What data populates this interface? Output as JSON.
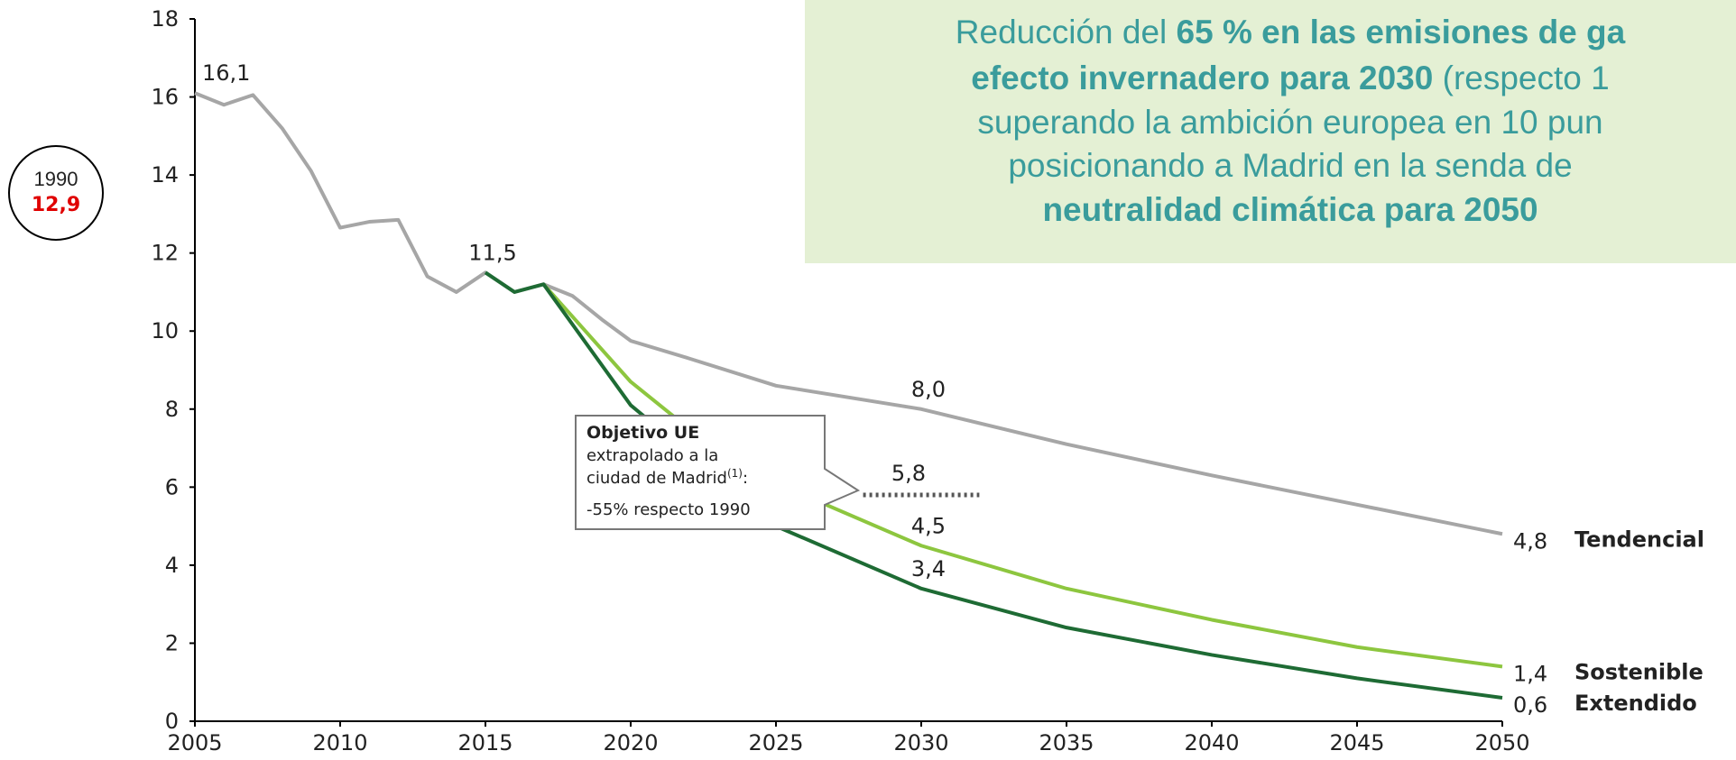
{
  "headline": {
    "line1_a": "Reducción del ",
    "line1_b": "65 % en las emisiones de ga",
    "line2_a": "efecto invernadero para 2030",
    "line2_b": " (respecto 1",
    "line3": "superando la ambición europea en 10 pun",
    "line4": "posicionando a Madrid en la senda de",
    "line5": "neutralidad climática para 2050"
  },
  "chart_data": {
    "type": "line",
    "xlim": [
      2005,
      2050
    ],
    "xticks": [
      2005,
      2010,
      2015,
      2020,
      2025,
      2030,
      2035,
      2040,
      2045,
      2050
    ],
    "ylim": [
      0,
      18
    ],
    "yticks": [
      0,
      2,
      4,
      6,
      8,
      10,
      12,
      14,
      16,
      18
    ],
    "series": [
      {
        "name": "Tendencial",
        "color": "#a6a6a6",
        "x": [
          2005,
          2006,
          2007,
          2008,
          2009,
          2010,
          2011,
          2012,
          2013,
          2014,
          2015,
          2016,
          2017,
          2018,
          2019,
          2020,
          2022,
          2025,
          2030,
          2035,
          2040,
          2045,
          2050
        ],
        "values": [
          16.1,
          15.8,
          16.05,
          15.2,
          14.1,
          12.65,
          12.8,
          12.85,
          11.4,
          11.0,
          11.5,
          11.0,
          11.2,
          10.9,
          10.3,
          9.75,
          9.3,
          8.6,
          8.0,
          7.1,
          6.3,
          5.55,
          4.8
        ],
        "value_labels": [
          "16,1",
          null,
          null,
          null,
          null,
          null,
          null,
          null,
          null,
          null,
          "11,5",
          null,
          null,
          null,
          null,
          null,
          null,
          null,
          "8,0",
          null,
          null,
          null,
          "4,8"
        ]
      },
      {
        "name": "Sostenible",
        "color": "#8dc63f",
        "x": [
          2017,
          2020,
          2022,
          2025,
          2030,
          2035,
          2040,
          2045,
          2050
        ],
        "values": [
          11.2,
          8.7,
          7.5,
          6.1,
          4.5,
          3.4,
          2.6,
          1.9,
          1.4
        ],
        "value_labels": [
          null,
          null,
          null,
          null,
          "4,5",
          null,
          null,
          null,
          "1,4"
        ]
      },
      {
        "name": "Extendido",
        "color": "#1e6b34",
        "x": [
          2015,
          2016,
          2017,
          2020,
          2025,
          2030,
          2035,
          2040,
          2045,
          2050
        ],
        "values": [
          11.5,
          11.0,
          11.2,
          8.1,
          5.0,
          3.4,
          2.4,
          1.7,
          1.1,
          0.6
        ],
        "value_labels": [
          null,
          null,
          null,
          null,
          null,
          "3,4",
          null,
          null,
          null,
          "0,6"
        ]
      }
    ],
    "target": {
      "x": [
        2028,
        2032
      ],
      "value": 5.8,
      "label": "5,8"
    },
    "baseline": {
      "year": "1990",
      "value": 12.9,
      "label": "12,9"
    },
    "callout": {
      "title": "Objetivo UE",
      "line2": "extrapolado a la",
      "line3": "ciudad de Madrid",
      "sup": "(1)",
      "line3_end": ":",
      "line4": "-55% respecto 1990"
    }
  }
}
